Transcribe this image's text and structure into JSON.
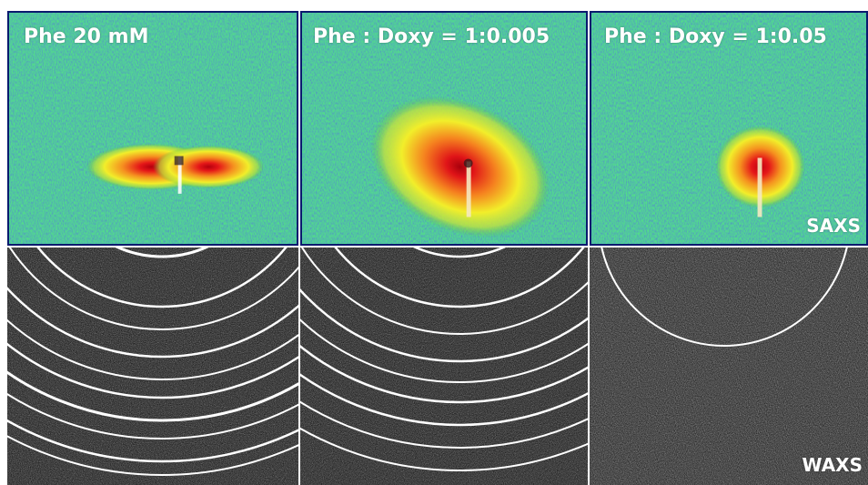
{
  "panels": [
    {
      "label": "Phe 20 mM"
    },
    {
      "label": "Phe : Doxy = 1:0.005"
    },
    {
      "label": "Phe : Doxy = 1:0.05"
    }
  ],
  "saxs_label": "SAXS",
  "waxs_label": "WAXS",
  "colors": {
    "saxs_background": "#2f7a3a",
    "saxs_noise_blue": "#1a3d8f",
    "saxs_noise_green": "#5fbf3a",
    "saxs_glow_yellow": "#f2ee2a",
    "saxs_core_red": "#e00d1a",
    "waxs_background": "#111111",
    "waxs_rings": "#ffffff",
    "frame_border": "#0a1a6e"
  }
}
